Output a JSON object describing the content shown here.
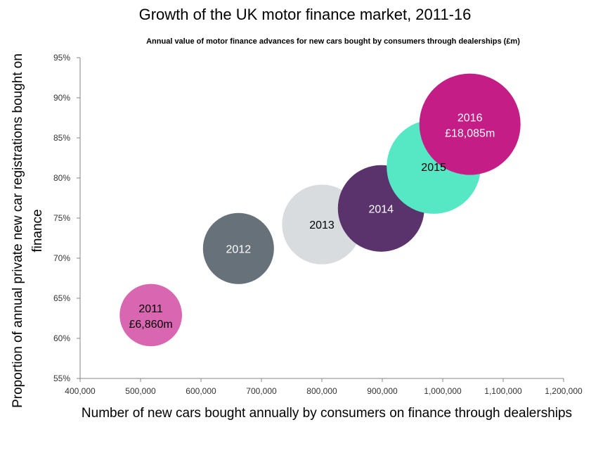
{
  "chart_data": {
    "type": "bubble",
    "title": "Growth of the UK motor finance market, 2011-16",
    "subtitle": "Annual value of motor finance advances for new cars bought by consumers through dealerships  (£m)",
    "xlabel": "Number of new cars bought annually by consumers on finance through dealerships",
    "ylabel": "Proportion of annual private new car registrations bought on finance",
    "xlim": [
      400000,
      1200000
    ],
    "ylim": [
      55,
      95
    ],
    "xticks": [
      {
        "value": 400000,
        "label": "400,000"
      },
      {
        "value": 500000,
        "label": "500,000"
      },
      {
        "value": 600000,
        "label": "600,000"
      },
      {
        "value": 700000,
        "label": "700,000"
      },
      {
        "value": 800000,
        "label": "800,000"
      },
      {
        "value": 900000,
        "label": "900,000"
      },
      {
        "value": 1000000,
        "label": "1,000,000"
      },
      {
        "value": 1100000,
        "label": "1,100,000"
      },
      {
        "value": 1200000,
        "label": "1,200,000"
      }
    ],
    "yticks": [
      {
        "value": 55,
        "label": "55%"
      },
      {
        "value": 60,
        "label": "60%"
      },
      {
        "value": 65,
        "label": "65%"
      },
      {
        "value": 70,
        "label": "70%"
      },
      {
        "value": 75,
        "label": "75%"
      },
      {
        "value": 80,
        "label": "80%"
      },
      {
        "value": 85,
        "label": "85%"
      },
      {
        "value": 90,
        "label": "90%"
      },
      {
        "value": 95,
        "label": "95%"
      }
    ],
    "grid": false,
    "points": [
      {
        "year": "2011",
        "label": "2011",
        "value_label": "£6,860m",
        "x": 517000,
        "y": 62.9,
        "value": 6860,
        "color": "#d966b0",
        "text_color": "#000000"
      },
      {
        "year": "2012",
        "label": "2012",
        "value_label": "",
        "x": 662000,
        "y": 71.2,
        "value": 8900,
        "color": "#67717a",
        "text_color": "#ffffff"
      },
      {
        "year": "2013",
        "label": "2013",
        "value_label": "",
        "x": 800000,
        "y": 74.2,
        "value": 11200,
        "color": "#d9dcde",
        "text_color": "#000000"
      },
      {
        "year": "2014",
        "label": "2014",
        "value_label": "",
        "x": 898000,
        "y": 76.2,
        "value": 13200,
        "color": "#5a336d",
        "text_color": "#ffffff"
      },
      {
        "year": "2015",
        "label": "2015",
        "value_label": "",
        "x": 985000,
        "y": 81.4,
        "value": 15600,
        "color": "#56e8c4",
        "text_color": "#000000"
      },
      {
        "year": "2016",
        "label": "2016",
        "value_label": "£18,085m",
        "x": 1045000,
        "y": 86.7,
        "value": 18085,
        "color": "#c41d86",
        "text_color": "#ffffff"
      }
    ]
  }
}
